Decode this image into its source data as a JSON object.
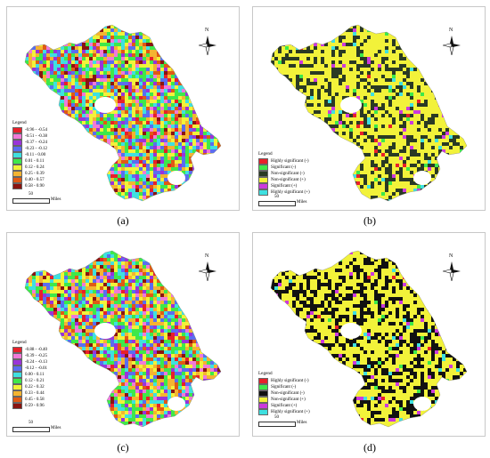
{
  "panels": [
    {
      "id": "a",
      "caption": "(a)",
      "north_label": "N",
      "legend_title": "Legend",
      "legend": [
        {
          "label": "-0.96 - -0.54",
          "color": "#e8202a"
        },
        {
          "label": "-0.51 - -0.38",
          "color": "#f07ad8"
        },
        {
          "label": "-0.37 - -0.24",
          "color": "#9a33d9"
        },
        {
          "label": "-0.23 - -0.12",
          "color": "#5a6df0"
        },
        {
          "label": "-0.11 - 0.00",
          "color": "#3fe0e0"
        },
        {
          "label": "0.01 - 0.11",
          "color": "#3ee84a"
        },
        {
          "label": "0.12 - 0.24",
          "color": "#f2f23a"
        },
        {
          "label": "0.25 - 0.39",
          "color": "#f4b431"
        },
        {
          "label": "0.40 - 0.57",
          "color": "#e05a14"
        },
        {
          "label": "0.58 - 0.90",
          "color": "#8a1410"
        }
      ],
      "scale_number": "50",
      "scale_unit": "Miles"
    },
    {
      "id": "b",
      "caption": "(b)",
      "north_label": "N",
      "legend_title": "Legend",
      "legend": [
        {
          "label": "Highly significant (-)",
          "color": "#e8202a"
        },
        {
          "label": "Significant (-)",
          "color": "#3ee84a"
        },
        {
          "label": "Non-significant (-)",
          "color": "#2a3a24"
        },
        {
          "label": "Non-significant (+)",
          "color": "#f2f23a"
        },
        {
          "label": "Significant (+)",
          "color": "#cc3adc"
        },
        {
          "label": "Highly significant (+)",
          "color": "#3fe0e0"
        }
      ],
      "scale_number": "50",
      "scale_unit": "Miles"
    },
    {
      "id": "c",
      "caption": "(c)",
      "north_label": "N",
      "legend_title": "Legend",
      "legend": [
        {
          "label": "-0.88 - -0.40",
          "color": "#e8202a"
        },
        {
          "label": "-0.39 - -0.25",
          "color": "#f07ad8"
        },
        {
          "label": "-0.24 - -0.13",
          "color": "#9a33d9"
        },
        {
          "label": "-0.12 - -0.01",
          "color": "#5a6df0"
        },
        {
          "label": "0.00 - 0.11",
          "color": "#3fe0e0"
        },
        {
          "label": "0.12 - 0.21",
          "color": "#3ee84a"
        },
        {
          "label": "0.22 - 0.32",
          "color": "#f2f23a"
        },
        {
          "label": "0.33 - 0.44",
          "color": "#f4b431"
        },
        {
          "label": "0.45 - 0.58",
          "color": "#e05a14"
        },
        {
          "label": "0.59 - 0.96",
          "color": "#8a1410"
        }
      ],
      "scale_number": "50",
      "scale_unit": "Miles"
    },
    {
      "id": "d",
      "caption": "(d)",
      "north_label": "N",
      "legend_title": "Legend",
      "legend": [
        {
          "label": "Highly significant (-)",
          "color": "#e8202a"
        },
        {
          "label": "Significant (-)",
          "color": "#3ee84a"
        },
        {
          "label": "Non-significant (-)",
          "color": "#111111"
        },
        {
          "label": "Non-significant (+)",
          "color": "#f2f23a"
        },
        {
          "label": "Significant (+)",
          "color": "#cc3adc"
        },
        {
          "label": "Highly significant (+)",
          "color": "#3fe0e0"
        }
      ],
      "scale_number": "50",
      "scale_unit": "Miles"
    }
  ]
}
